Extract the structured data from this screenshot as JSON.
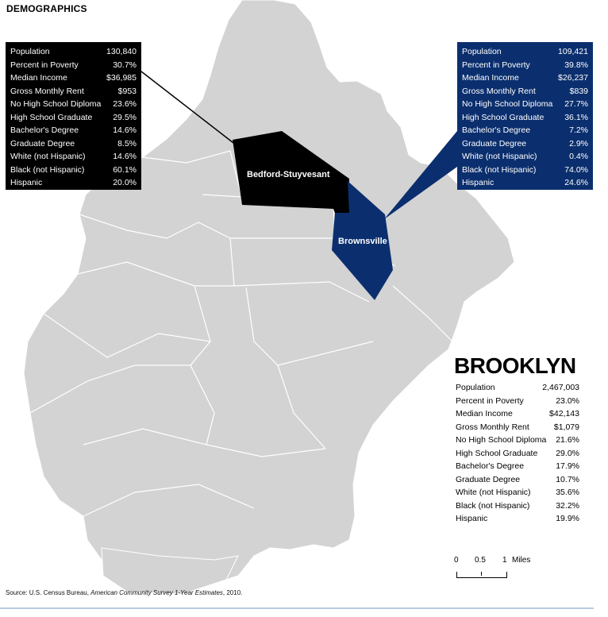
{
  "title": "DEMOGRAPHICS",
  "colors": {
    "borough_fill": "#d3d3d4",
    "borough_stroke": "#ffffff",
    "bedstuy_fill": "#000000",
    "brownsville_fill": "#0b2f6e"
  },
  "districts": {
    "bedstuy": {
      "name": "Bedford-Stuyvesant",
      "stats": [
        {
          "label": "Population",
          "value": "130,840"
        },
        {
          "label": "Percent in Poverty",
          "value": "30.7%"
        },
        {
          "label": "Median Income",
          "value": "$36,985"
        },
        {
          "label": "Gross Monthly Rent",
          "value": "$953"
        },
        {
          "label": "No High School Diploma",
          "value": "23.6%"
        },
        {
          "label": "High School Graduate",
          "value": "29.5%"
        },
        {
          "label": "Bachelor's Degree",
          "value": "14.6%"
        },
        {
          "label": "Graduate Degree",
          "value": "8.5%"
        },
        {
          "label": "White (not Hispanic)",
          "value": "14.6%"
        },
        {
          "label": "Black (not Hispanic)",
          "value": "60.1%"
        },
        {
          "label": "Hispanic",
          "value": "20.0%"
        }
      ]
    },
    "brownsville": {
      "name": "Brownsville",
      "stats": [
        {
          "label": "Population",
          "value": "109,421"
        },
        {
          "label": "Percent in Poverty",
          "value": "39.8%"
        },
        {
          "label": "Median Income",
          "value": "$26,237"
        },
        {
          "label": "Gross Monthly Rent",
          "value": "$839"
        },
        {
          "label": "No High School Diploma",
          "value": "27.7%"
        },
        {
          "label": "High School Graduate",
          "value": "36.1%"
        },
        {
          "label": "Bachelor's Degree",
          "value": "7.2%"
        },
        {
          "label": "Graduate Degree",
          "value": "2.9%"
        },
        {
          "label": "White (not Hispanic)",
          "value": "0.4%"
        },
        {
          "label": "Black (not Hispanic)",
          "value": "74.0%"
        },
        {
          "label": "Hispanic",
          "value": "24.6%"
        }
      ]
    }
  },
  "brooklyn": {
    "name": "BROOKLYN",
    "stats": [
      {
        "label": "Population",
        "value": "2,467,003"
      },
      {
        "label": "Percent in Poverty",
        "value": "23.0%"
      },
      {
        "label": "Median Income",
        "value": "$42,143"
      },
      {
        "label": "Gross Monthly Rent",
        "value": "$1,079"
      },
      {
        "label": "No High School Diploma",
        "value": "21.6%"
      },
      {
        "label": "High School Graduate",
        "value": "29.0%"
      },
      {
        "label": "Bachelor's Degree",
        "value": "17.9%"
      },
      {
        "label": "Graduate Degree",
        "value": "10.7%"
      },
      {
        "label": "White (not Hispanic)",
        "value": "35.6%"
      },
      {
        "label": "Black (not Hispanic)",
        "value": "32.2%"
      },
      {
        "label": "Hispanic",
        "value": "19.9%"
      }
    ]
  },
  "scale": {
    "tick_0": "0",
    "tick_mid": "0.5",
    "tick_end": "1",
    "unit": "Miles"
  },
  "source": {
    "prefix": "Source: U.S. Census Bureau, ",
    "publication": "American Community Survey 1-Year Estimates",
    "suffix": ", 2010."
  }
}
